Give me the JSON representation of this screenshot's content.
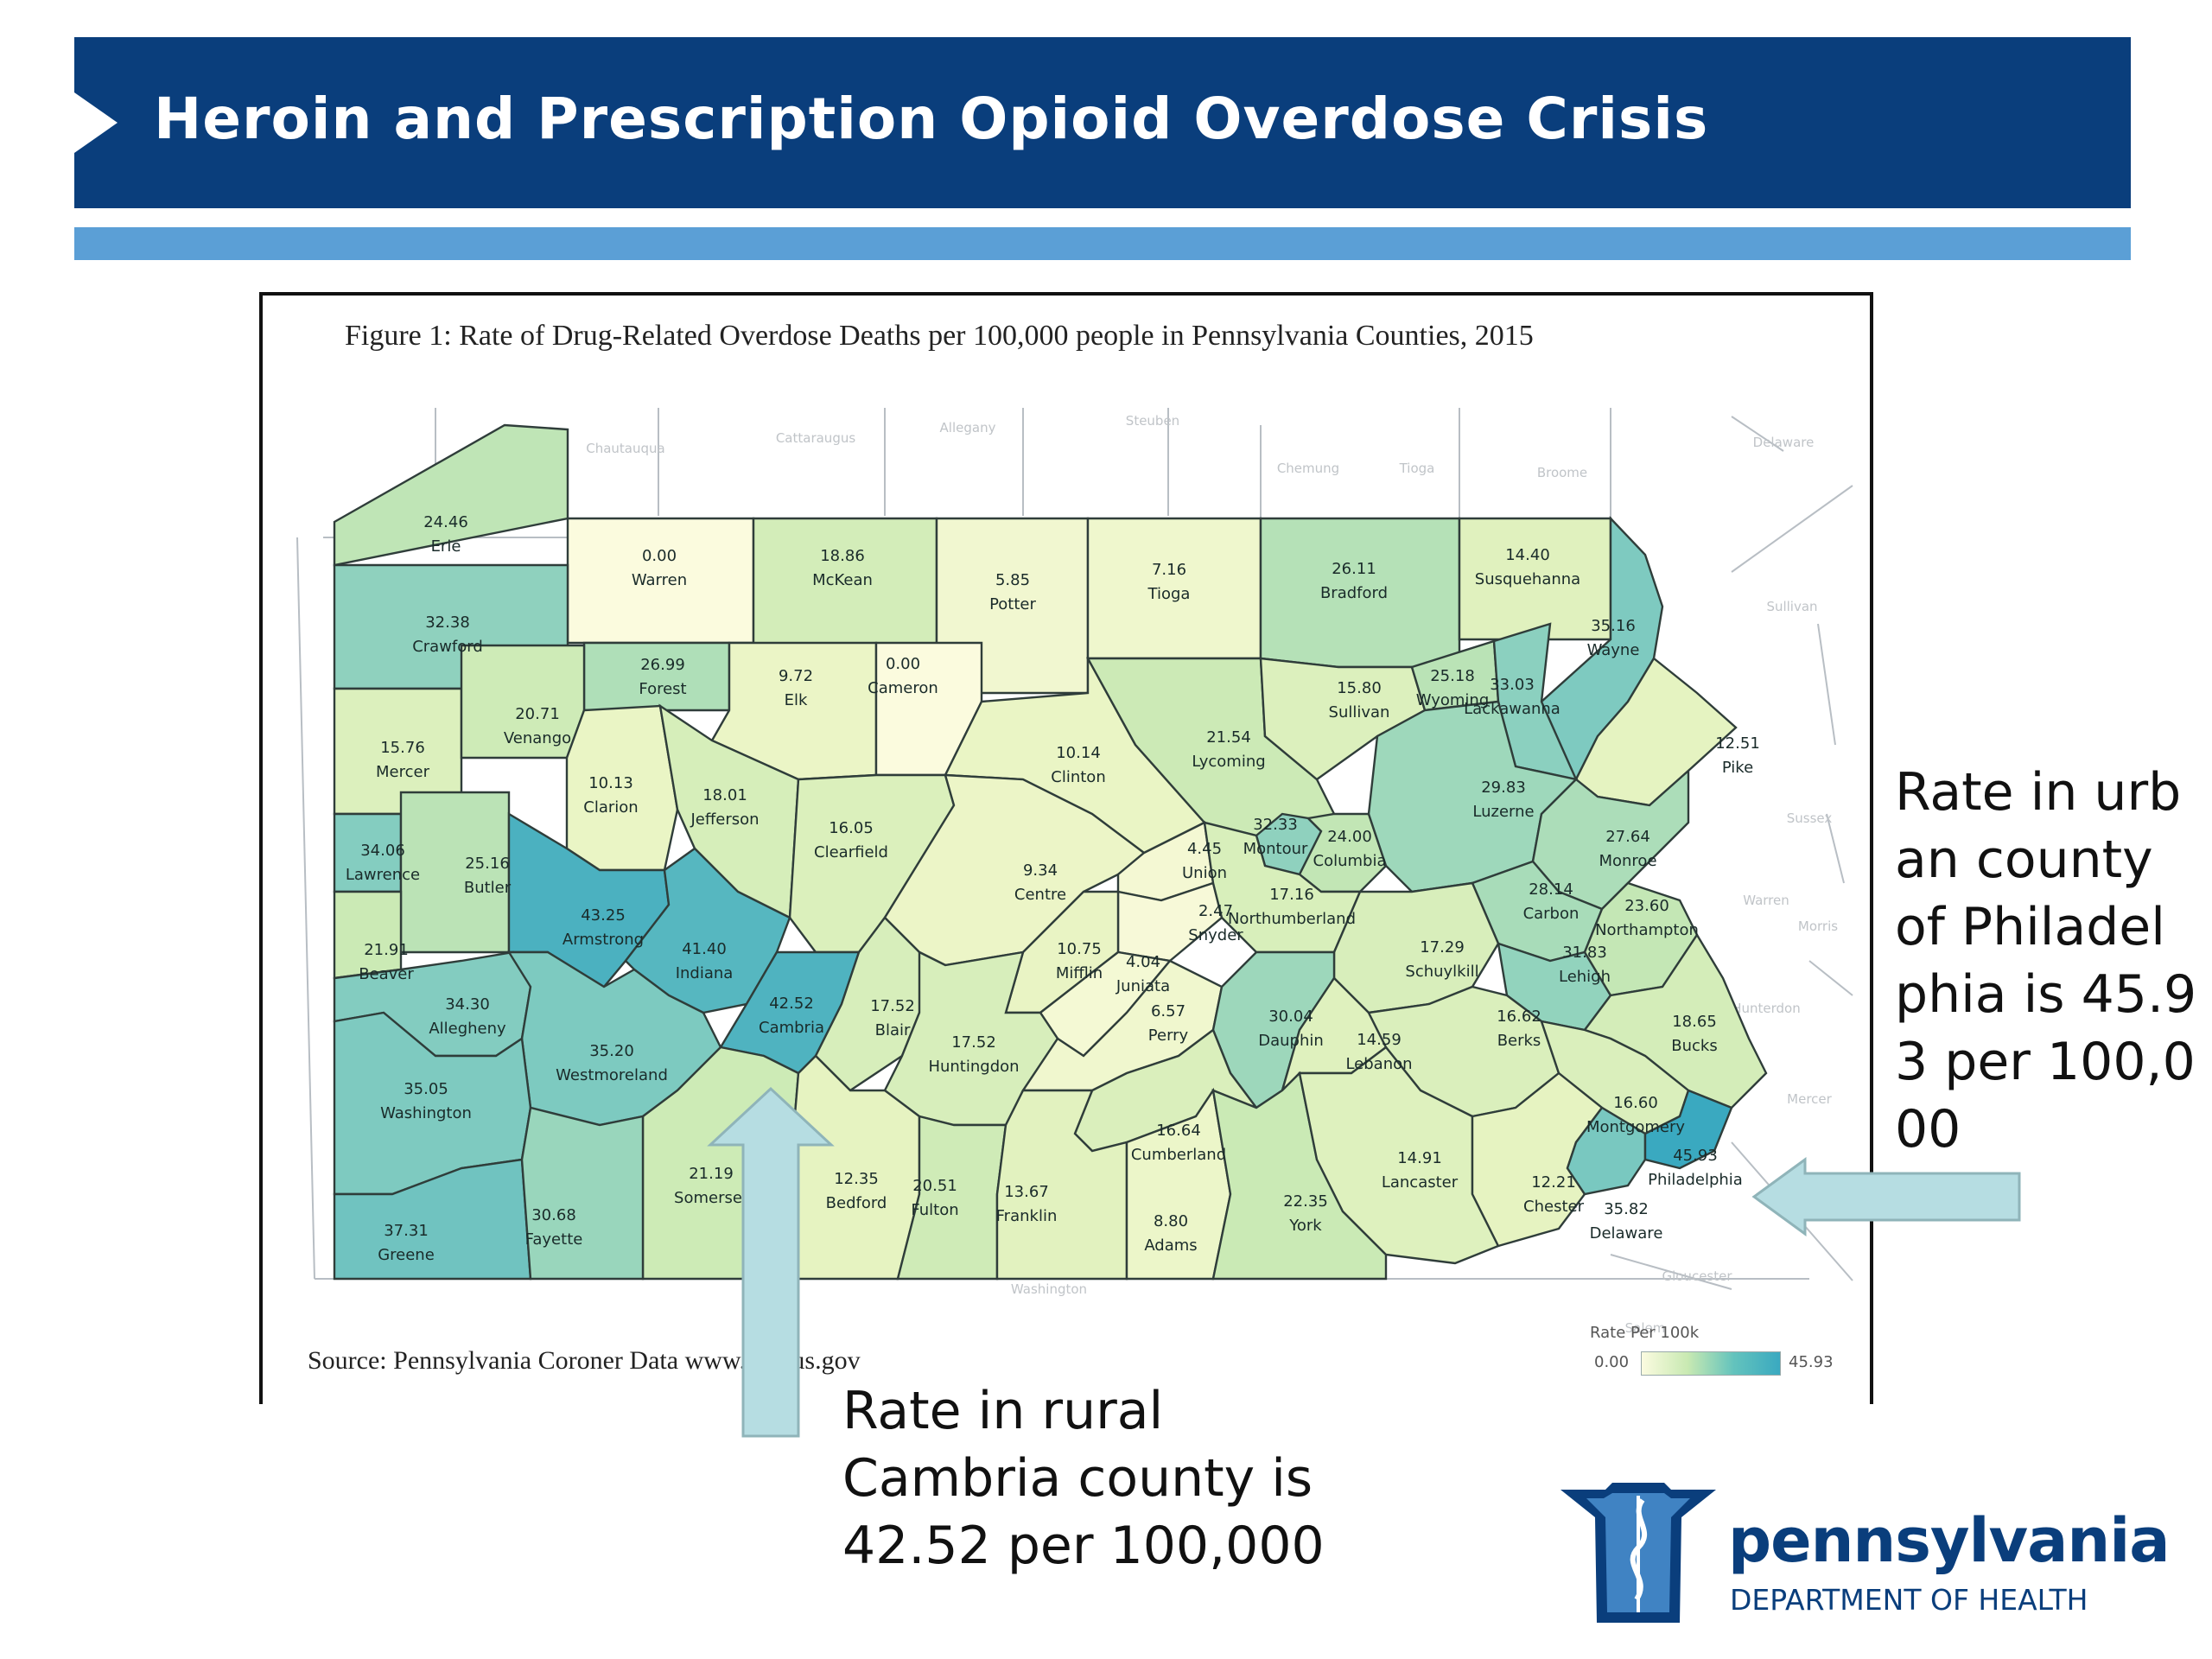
{
  "header": {
    "title": "Heroin and Prescription Opioid Overdose Crisis"
  },
  "figure": {
    "title": "Figure 1: Rate of Drug-Related Overdose Deaths per 100,000 people in Pennsylvania Counties, 2015",
    "source": "Source: Pennsylvania Coroner Data",
    "source_url": "www.census.gov"
  },
  "legend": {
    "title": "Rate Per 100k",
    "min": "0.00",
    "max": "45.93",
    "min_value": 0,
    "max_value": 45.93
  },
  "counties": [
    {
      "name": "Erie",
      "rate": "24.46",
      "value": 24.46
    },
    {
      "name": "Warren",
      "rate": "0.00",
      "value": 0.0
    },
    {
      "name": "McKean",
      "rate": "18.86",
      "value": 18.86
    },
    {
      "name": "Potter",
      "rate": "5.85",
      "value": 5.85
    },
    {
      "name": "Tioga",
      "rate": "7.16",
      "value": 7.16
    },
    {
      "name": "Bradford",
      "rate": "26.11",
      "value": 26.11
    },
    {
      "name": "Susquehanna",
      "rate": "14.40",
      "value": 14.4
    },
    {
      "name": "Wayne",
      "rate": "35.16",
      "value": 35.16
    },
    {
      "name": "Crawford",
      "rate": "32.38",
      "value": 32.38
    },
    {
      "name": "Forest",
      "rate": "26.99",
      "value": 26.99
    },
    {
      "name": "Elk",
      "rate": "9.72",
      "value": 9.72
    },
    {
      "name": "Cameron",
      "rate": "0.00",
      "value": 0.0
    },
    {
      "name": "Clinton",
      "rate": "10.14",
      "value": 10.14
    },
    {
      "name": "Lycoming",
      "rate": "21.54",
      "value": 21.54
    },
    {
      "name": "Sullivan",
      "rate": "15.80",
      "value": 15.8
    },
    {
      "name": "Wyoming",
      "rate": "25.18",
      "value": 25.18
    },
    {
      "name": "Lackawanna",
      "rate": "33.03",
      "value": 33.03
    },
    {
      "name": "Pike",
      "rate": "12.51",
      "value": 12.51
    },
    {
      "name": "Mercer",
      "rate": "15.76",
      "value": 15.76
    },
    {
      "name": "Venango",
      "rate": "20.71",
      "value": 20.71
    },
    {
      "name": "Clarion",
      "rate": "10.13",
      "value": 10.13
    },
    {
      "name": "Jefferson",
      "rate": "18.01",
      "value": 18.01
    },
    {
      "name": "Clearfield",
      "rate": "16.05",
      "value": 16.05
    },
    {
      "name": "Centre",
      "rate": "9.34",
      "value": 9.34
    },
    {
      "name": "Union",
      "rate": "4.45",
      "value": 4.45
    },
    {
      "name": "Montour",
      "rate": "32.33",
      "value": 32.33
    },
    {
      "name": "Columbia",
      "rate": "24.00",
      "value": 24.0
    },
    {
      "name": "Luzerne",
      "rate": "29.83",
      "value": 29.83
    },
    {
      "name": "Monroe",
      "rate": "27.64",
      "value": 27.64
    },
    {
      "name": "Lawrence",
      "rate": "34.06",
      "value": 34.06
    },
    {
      "name": "Butler",
      "rate": "25.16",
      "value": 25.16
    },
    {
      "name": "Armstrong",
      "rate": "43.25",
      "value": 43.25
    },
    {
      "name": "Indiana",
      "rate": "41.40",
      "value": 41.4
    },
    {
      "name": "Snyder",
      "rate": "2.47",
      "value": 2.47
    },
    {
      "name": "Northumberland",
      "rate": "17.16",
      "value": 17.16
    },
    {
      "name": "Carbon",
      "rate": "28.14",
      "value": 28.14
    },
    {
      "name": "Beaver",
      "rate": "21.91",
      "value": 21.91
    },
    {
      "name": "Allegheny",
      "rate": "34.30",
      "value": 34.3
    },
    {
      "name": "Cambria",
      "rate": "42.52",
      "value": 42.52
    },
    {
      "name": "Blair",
      "rate": "17.52",
      "value": 17.52
    },
    {
      "name": "Mifflin",
      "rate": "10.75",
      "value": 10.75
    },
    {
      "name": "Juniata",
      "rate": "4.04",
      "value": 4.04
    },
    {
      "name": "Schuylkill",
      "rate": "17.29",
      "value": 17.29
    },
    {
      "name": "Lehigh",
      "rate": "31.83",
      "value": 31.83
    },
    {
      "name": "Northampton",
      "rate": "23.60",
      "value": 23.6
    },
    {
      "name": "Westmoreland",
      "rate": "35.20",
      "value": 35.2
    },
    {
      "name": "Huntingdon",
      "rate": "17.52",
      "value": 17.52
    },
    {
      "name": "Perry",
      "rate": "6.57",
      "value": 6.57
    },
    {
      "name": "Dauphin",
      "rate": "30.04",
      "value": 30.04
    },
    {
      "name": "Lebanon",
      "rate": "14.59",
      "value": 14.59
    },
    {
      "name": "Berks",
      "rate": "16.62",
      "value": 16.62
    },
    {
      "name": "Bucks",
      "rate": "18.65",
      "value": 18.65
    },
    {
      "name": "Washington",
      "rate": "35.05",
      "value": 35.05
    },
    {
      "name": "Montgomery",
      "rate": "16.60",
      "value": 16.6
    },
    {
      "name": "Cumberland",
      "rate": "16.64",
      "value": 16.64
    },
    {
      "name": "Somerset",
      "rate": "21.19",
      "value": 21.19
    },
    {
      "name": "Bedford",
      "rate": "12.35",
      "value": 12.35
    },
    {
      "name": "Fulton",
      "rate": "20.51",
      "value": 20.51
    },
    {
      "name": "Franklin",
      "rate": "13.67",
      "value": 13.67
    },
    {
      "name": "Adams",
      "rate": "8.80",
      "value": 8.8
    },
    {
      "name": "York",
      "rate": "22.35",
      "value": 22.35
    },
    {
      "name": "Lancaster",
      "rate": "14.91",
      "value": 14.91
    },
    {
      "name": "Chester",
      "rate": "12.21",
      "value": 12.21
    },
    {
      "name": "Delaware",
      "rate": "35.82",
      "value": 35.82
    },
    {
      "name": "Philadelphia",
      "rate": "45.93",
      "value": 45.93
    },
    {
      "name": "Greene",
      "rate": "37.31",
      "value": 37.31
    },
    {
      "name": "Fayette",
      "rate": "30.68",
      "value": 30.68
    }
  ],
  "context_labels": [
    "Chautauqua",
    "Cattaraugus",
    "Allegany",
    "Steuben",
    "Chemung",
    "Tioga",
    "Broome",
    "Delaware",
    "Sullivan",
    "Sussex",
    "Warren",
    "Morris",
    "Hunterdon",
    "Mercer",
    "Gloucester",
    "Salem",
    "Washington"
  ],
  "callouts": {
    "rural": "Rate in rural Cambria county is 42.52 per 100,000",
    "urban": "Rate in urban county of Philadelphia is 45.93 per 100,000"
  },
  "logo": {
    "main": "pennsylvania",
    "sub": "DEPARTMENT OF HEALTH"
  },
  "colors": {
    "banner": "#0a3e7c",
    "stripe": "#5b9fd6",
    "arrow": "#b6dde2",
    "scale_low": "#fbfbe0",
    "scale_mid": "#c8e9b2",
    "scale_high": "#3aa9c0"
  }
}
